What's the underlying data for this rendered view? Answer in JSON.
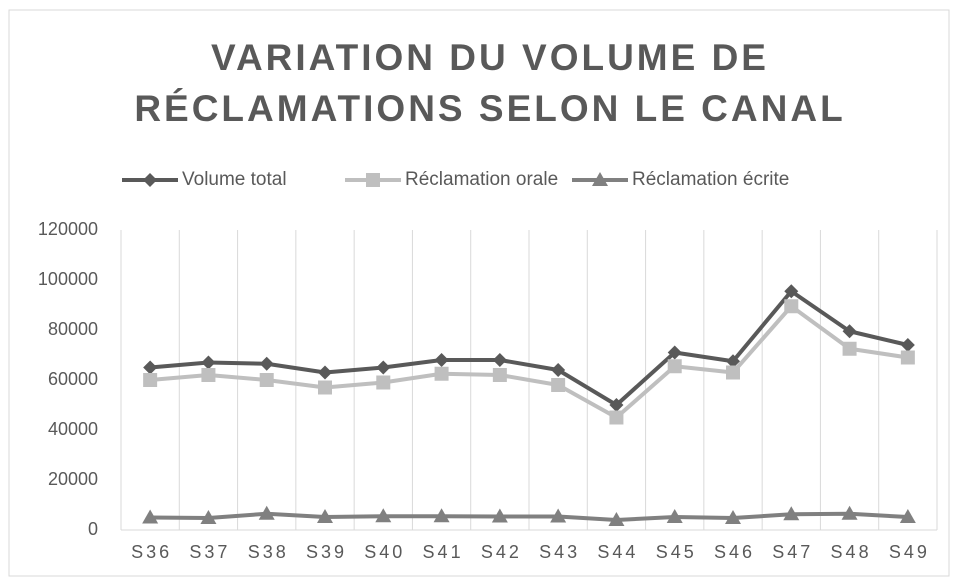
{
  "chart_data": {
    "type": "line",
    "title": [
      "VARIATION DU VOLUME DE",
      "RÉCLAMATIONS SELON LE CANAL"
    ],
    "categories": [
      "S36",
      "S37",
      "S38",
      "S39",
      "S40",
      "S41",
      "S42",
      "S43",
      "S44",
      "S45",
      "S46",
      "S47",
      "S48",
      "S49"
    ],
    "series": [
      {
        "name": "Volume total",
        "color": "#595959",
        "marker": "diamond",
        "values": [
          65000,
          67000,
          66500,
          63000,
          65000,
          68000,
          68000,
          64000,
          50000,
          71000,
          67500,
          95500,
          79500,
          74000
        ]
      },
      {
        "name": "Réclamation orale",
        "color": "#bfbfbf",
        "marker": "square",
        "values": [
          60000,
          62000,
          60000,
          57000,
          59000,
          62500,
          62000,
          58000,
          45000,
          65500,
          63000,
          89500,
          72500,
          69000
        ]
      },
      {
        "name": "Réclamation écrite",
        "color": "#808080",
        "marker": "triangle",
        "values": [
          5000,
          4800,
          6500,
          5200,
          5500,
          5500,
          5400,
          5400,
          4000,
          5200,
          4800,
          6300,
          6500,
          5200
        ]
      }
    ],
    "ylim": [
      0,
      120000
    ],
    "yticks": [
      0,
      20000,
      40000,
      60000,
      80000,
      100000,
      120000
    ],
    "grid": "vertical",
    "legend": "top"
  }
}
